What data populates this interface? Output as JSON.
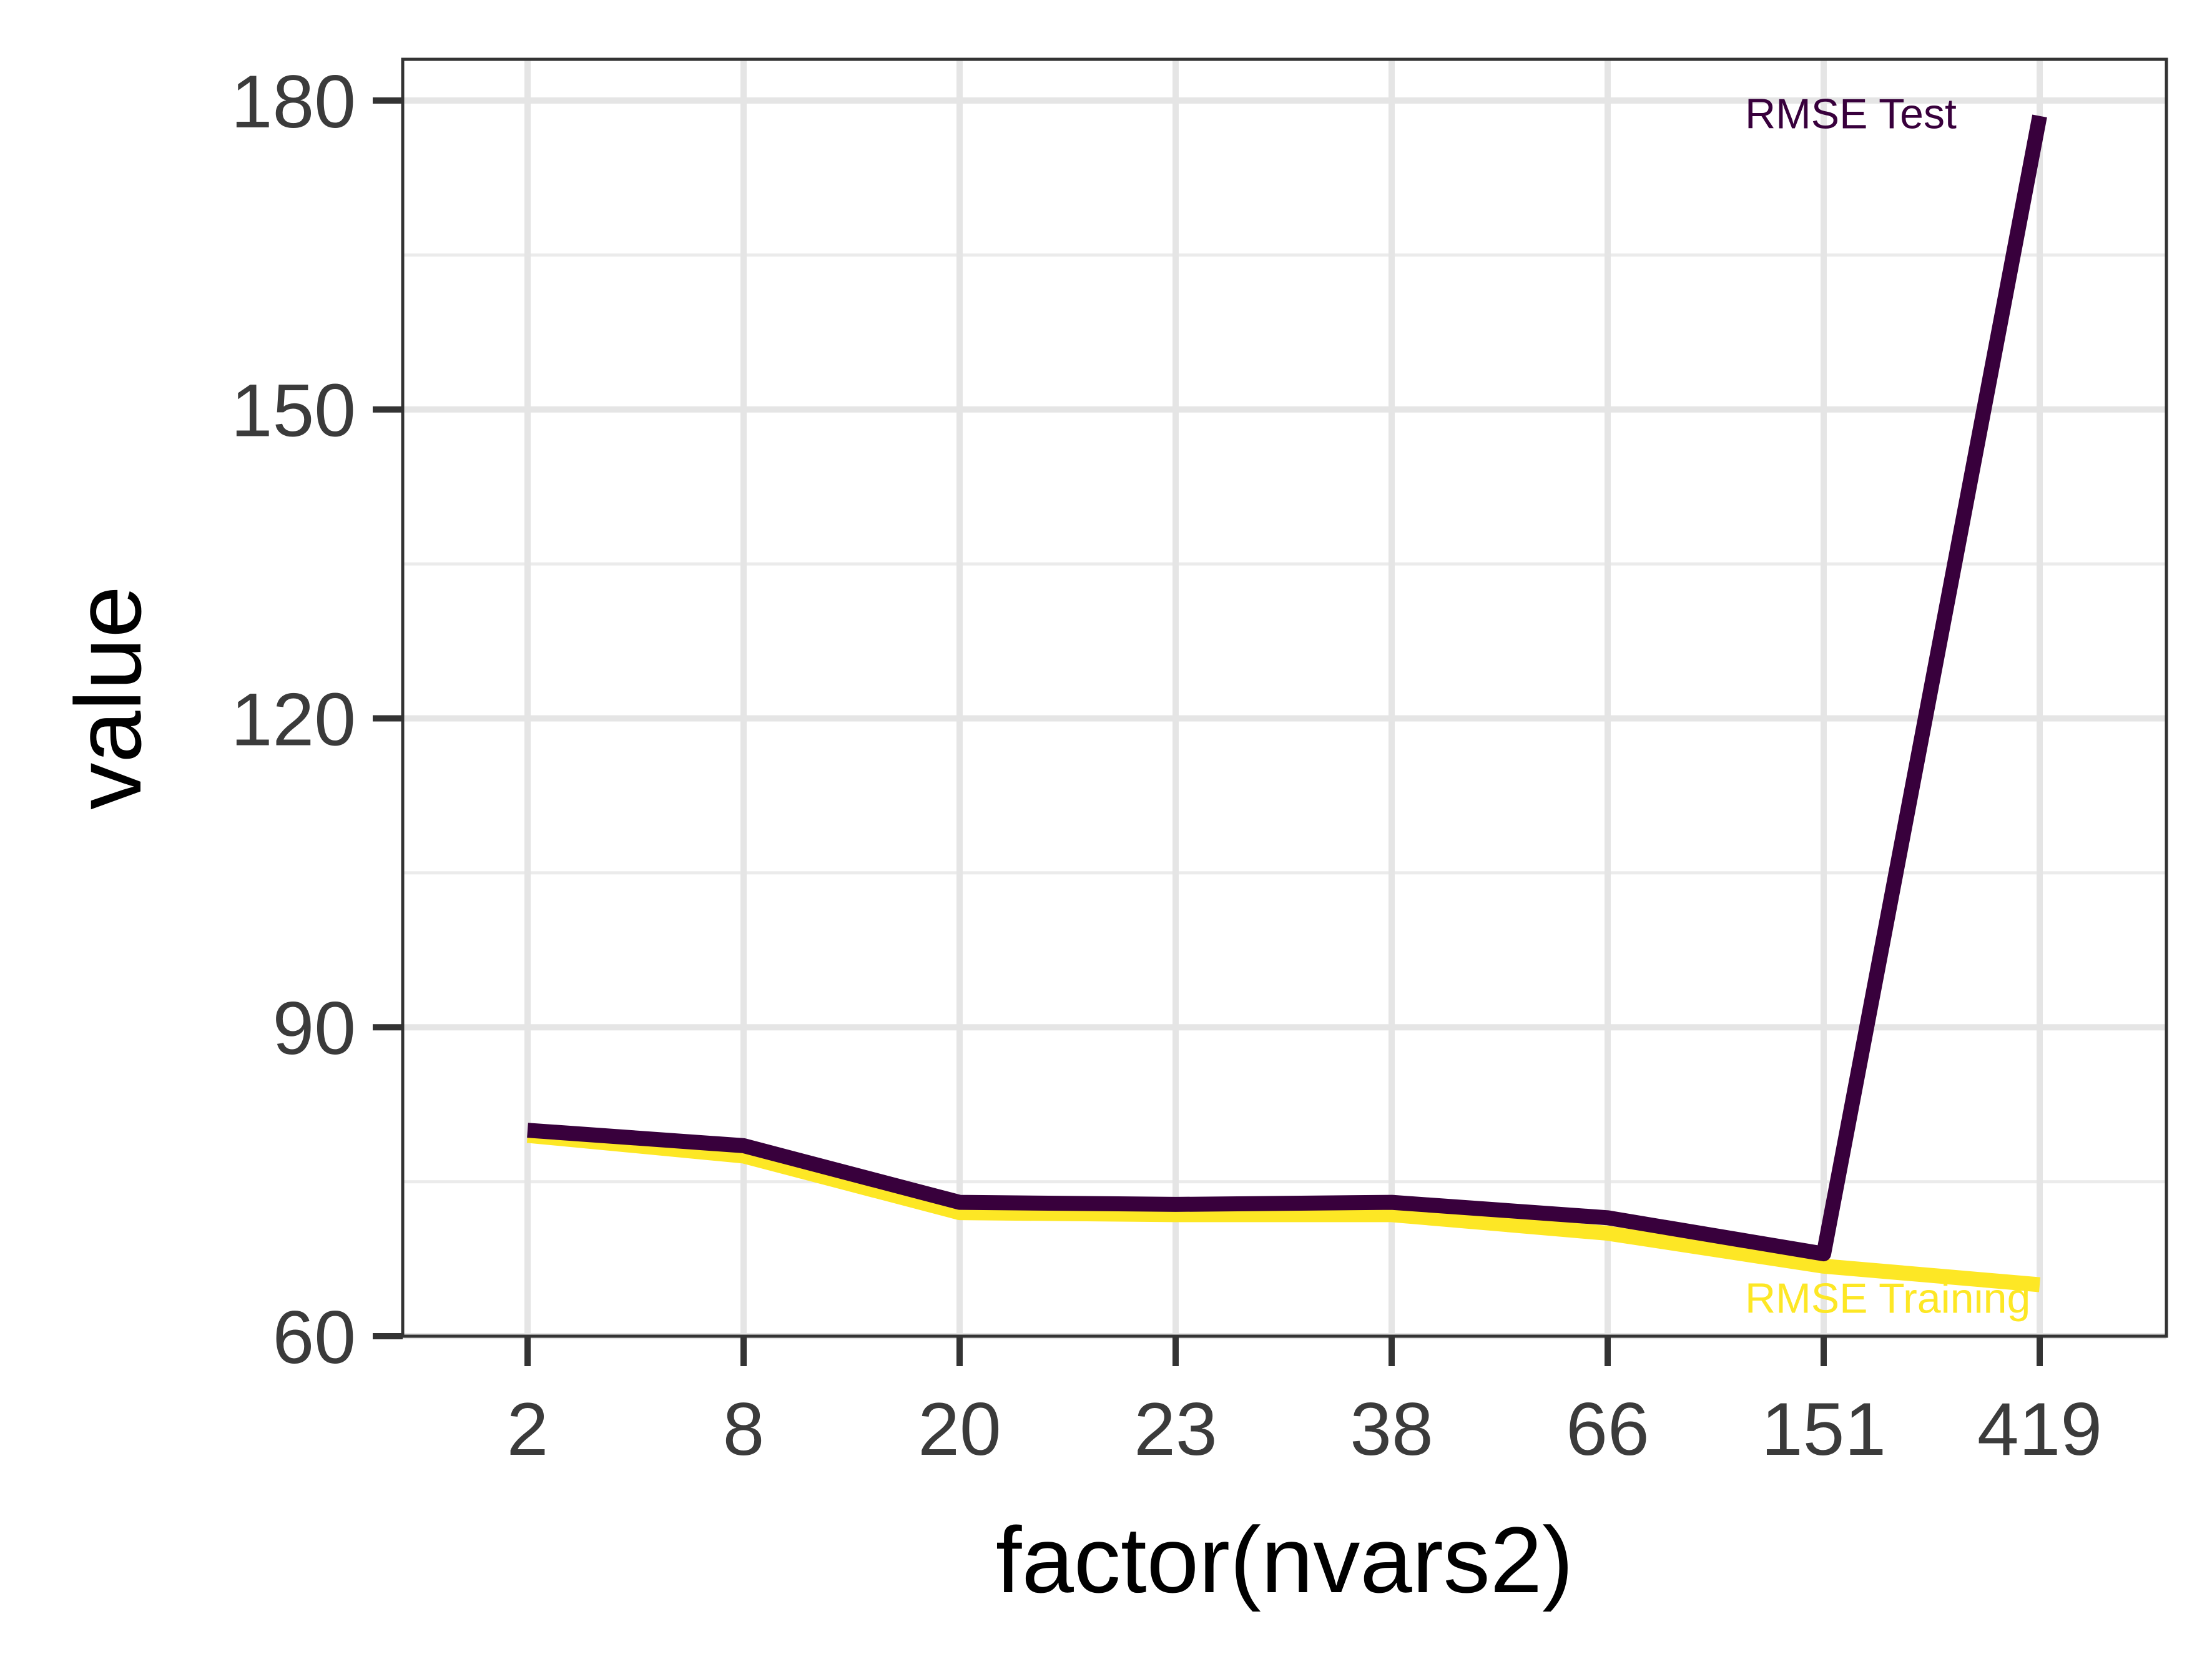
{
  "chart_data": {
    "type": "line",
    "title": "",
    "xlabel": "factor(nvars2)",
    "ylabel": "value",
    "categories": [
      "2",
      "8",
      "20",
      "23",
      "38",
      "66",
      "151",
      "419"
    ],
    "ylim": [
      60,
      184
    ],
    "yticks": [
      60,
      90,
      120,
      150,
      180
    ],
    "grid": true,
    "legend": "none (direct labels at line ends)",
    "series": [
      {
        "name": "RMSE Training",
        "color": "#fde725",
        "values": [
          79.5,
          77.5,
          72.0,
          71.8,
          71.8,
          70.0,
          66.8,
          65.0
        ]
      },
      {
        "name": "RMSE Test",
        "color": "#38003c",
        "values": [
          80.0,
          78.5,
          73.0,
          72.8,
          73.0,
          71.5,
          68.0,
          178.5
        ]
      }
    ]
  }
}
